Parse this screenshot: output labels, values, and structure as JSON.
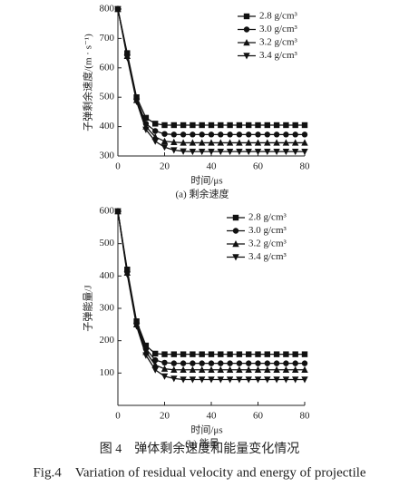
{
  "chart_data": [
    {
      "type": "line",
      "subtitle": "(a) 剩余速度",
      "x_label": "时间/μs",
      "y_label": "子弹剩余速度/(m · s⁻¹)",
      "x": [
        0,
        4,
        8,
        12,
        16,
        20,
        24,
        28,
        32,
        36,
        40,
        44,
        48,
        52,
        56,
        60,
        64,
        68,
        72,
        76,
        80
      ],
      "xlim": [
        0,
        80
      ],
      "xticks": [
        0,
        20,
        40,
        60,
        80
      ],
      "ylim": [
        300,
        800
      ],
      "yticks": [
        300,
        400,
        500,
        600,
        700,
        800
      ],
      "legend": "upper-right",
      "series": [
        {
          "name": "2.8 g/cm³",
          "color": "#111",
          "marker": "square",
          "values": [
            800,
            650,
            500,
            430,
            410,
            405,
            405,
            405,
            405,
            405,
            405,
            405,
            405,
            405,
            405,
            405,
            405,
            405,
            405,
            405,
            405
          ]
        },
        {
          "name": "3.0 g/cm³",
          "color": "#111",
          "marker": "circle",
          "values": [
            800,
            645,
            495,
            410,
            385,
            375,
            373,
            373,
            373,
            373,
            373,
            373,
            373,
            373,
            373,
            373,
            373,
            373,
            373,
            373,
            373
          ]
        },
        {
          "name": "3.2 g/cm³",
          "color": "#111",
          "marker": "triangle-up",
          "values": [
            800,
            640,
            490,
            400,
            365,
            350,
            347,
            345,
            345,
            345,
            345,
            345,
            345,
            345,
            345,
            345,
            345,
            345,
            345,
            345,
            345
          ]
        },
        {
          "name": "3.4 g/cm³",
          "color": "#111",
          "marker": "triangle-down",
          "values": [
            800,
            635,
            485,
            390,
            350,
            330,
            320,
            316,
            315,
            315,
            315,
            315,
            315,
            315,
            315,
            315,
            315,
            315,
            315,
            315,
            315
          ]
        }
      ]
    },
    {
      "type": "line",
      "subtitle": "(b) 能量",
      "x_label": "时间/μs",
      "y_label": "子弹能量/J",
      "x": [
        0,
        4,
        8,
        12,
        16,
        20,
        24,
        28,
        32,
        36,
        40,
        44,
        48,
        52,
        56,
        60,
        64,
        68,
        72,
        76,
        80
      ],
      "xlim": [
        0,
        80
      ],
      "xticks": [
        0,
        20,
        40,
        60,
        80
      ],
      "ylim": [
        0,
        600
      ],
      "yticks": [
        100,
        200,
        300,
        400,
        500,
        600
      ],
      "legend": "upper-right",
      "series": [
        {
          "name": "2.8 g/cm³",
          "color": "#111",
          "marker": "square",
          "values": [
            600,
            420,
            260,
            185,
            160,
            158,
            158,
            158,
            158,
            158,
            158,
            158,
            158,
            158,
            158,
            158,
            158,
            158,
            158,
            158,
            158
          ]
        },
        {
          "name": "3.0 g/cm³",
          "color": "#111",
          "marker": "circle",
          "values": [
            600,
            415,
            255,
            175,
            140,
            132,
            130,
            130,
            130,
            130,
            130,
            130,
            130,
            130,
            130,
            130,
            130,
            130,
            130,
            130,
            130
          ]
        },
        {
          "name": "3.2 g/cm³",
          "color": "#111",
          "marker": "triangle-up",
          "values": [
            600,
            410,
            250,
            165,
            125,
            113,
            110,
            110,
            110,
            110,
            110,
            110,
            110,
            110,
            110,
            110,
            110,
            110,
            110,
            110,
            110
          ]
        },
        {
          "name": "3.4 g/cm³",
          "color": "#111",
          "marker": "triangle-down",
          "values": [
            600,
            405,
            245,
            155,
            110,
            90,
            83,
            80,
            80,
            80,
            80,
            80,
            80,
            80,
            80,
            80,
            80,
            80,
            80,
            80,
            80
          ]
        }
      ]
    }
  ],
  "caption": {
    "zh": "图 4　弹体剩余速度和能量变化情况",
    "en": "Fig.4　Variation of residual velocity and energy of projectile"
  }
}
